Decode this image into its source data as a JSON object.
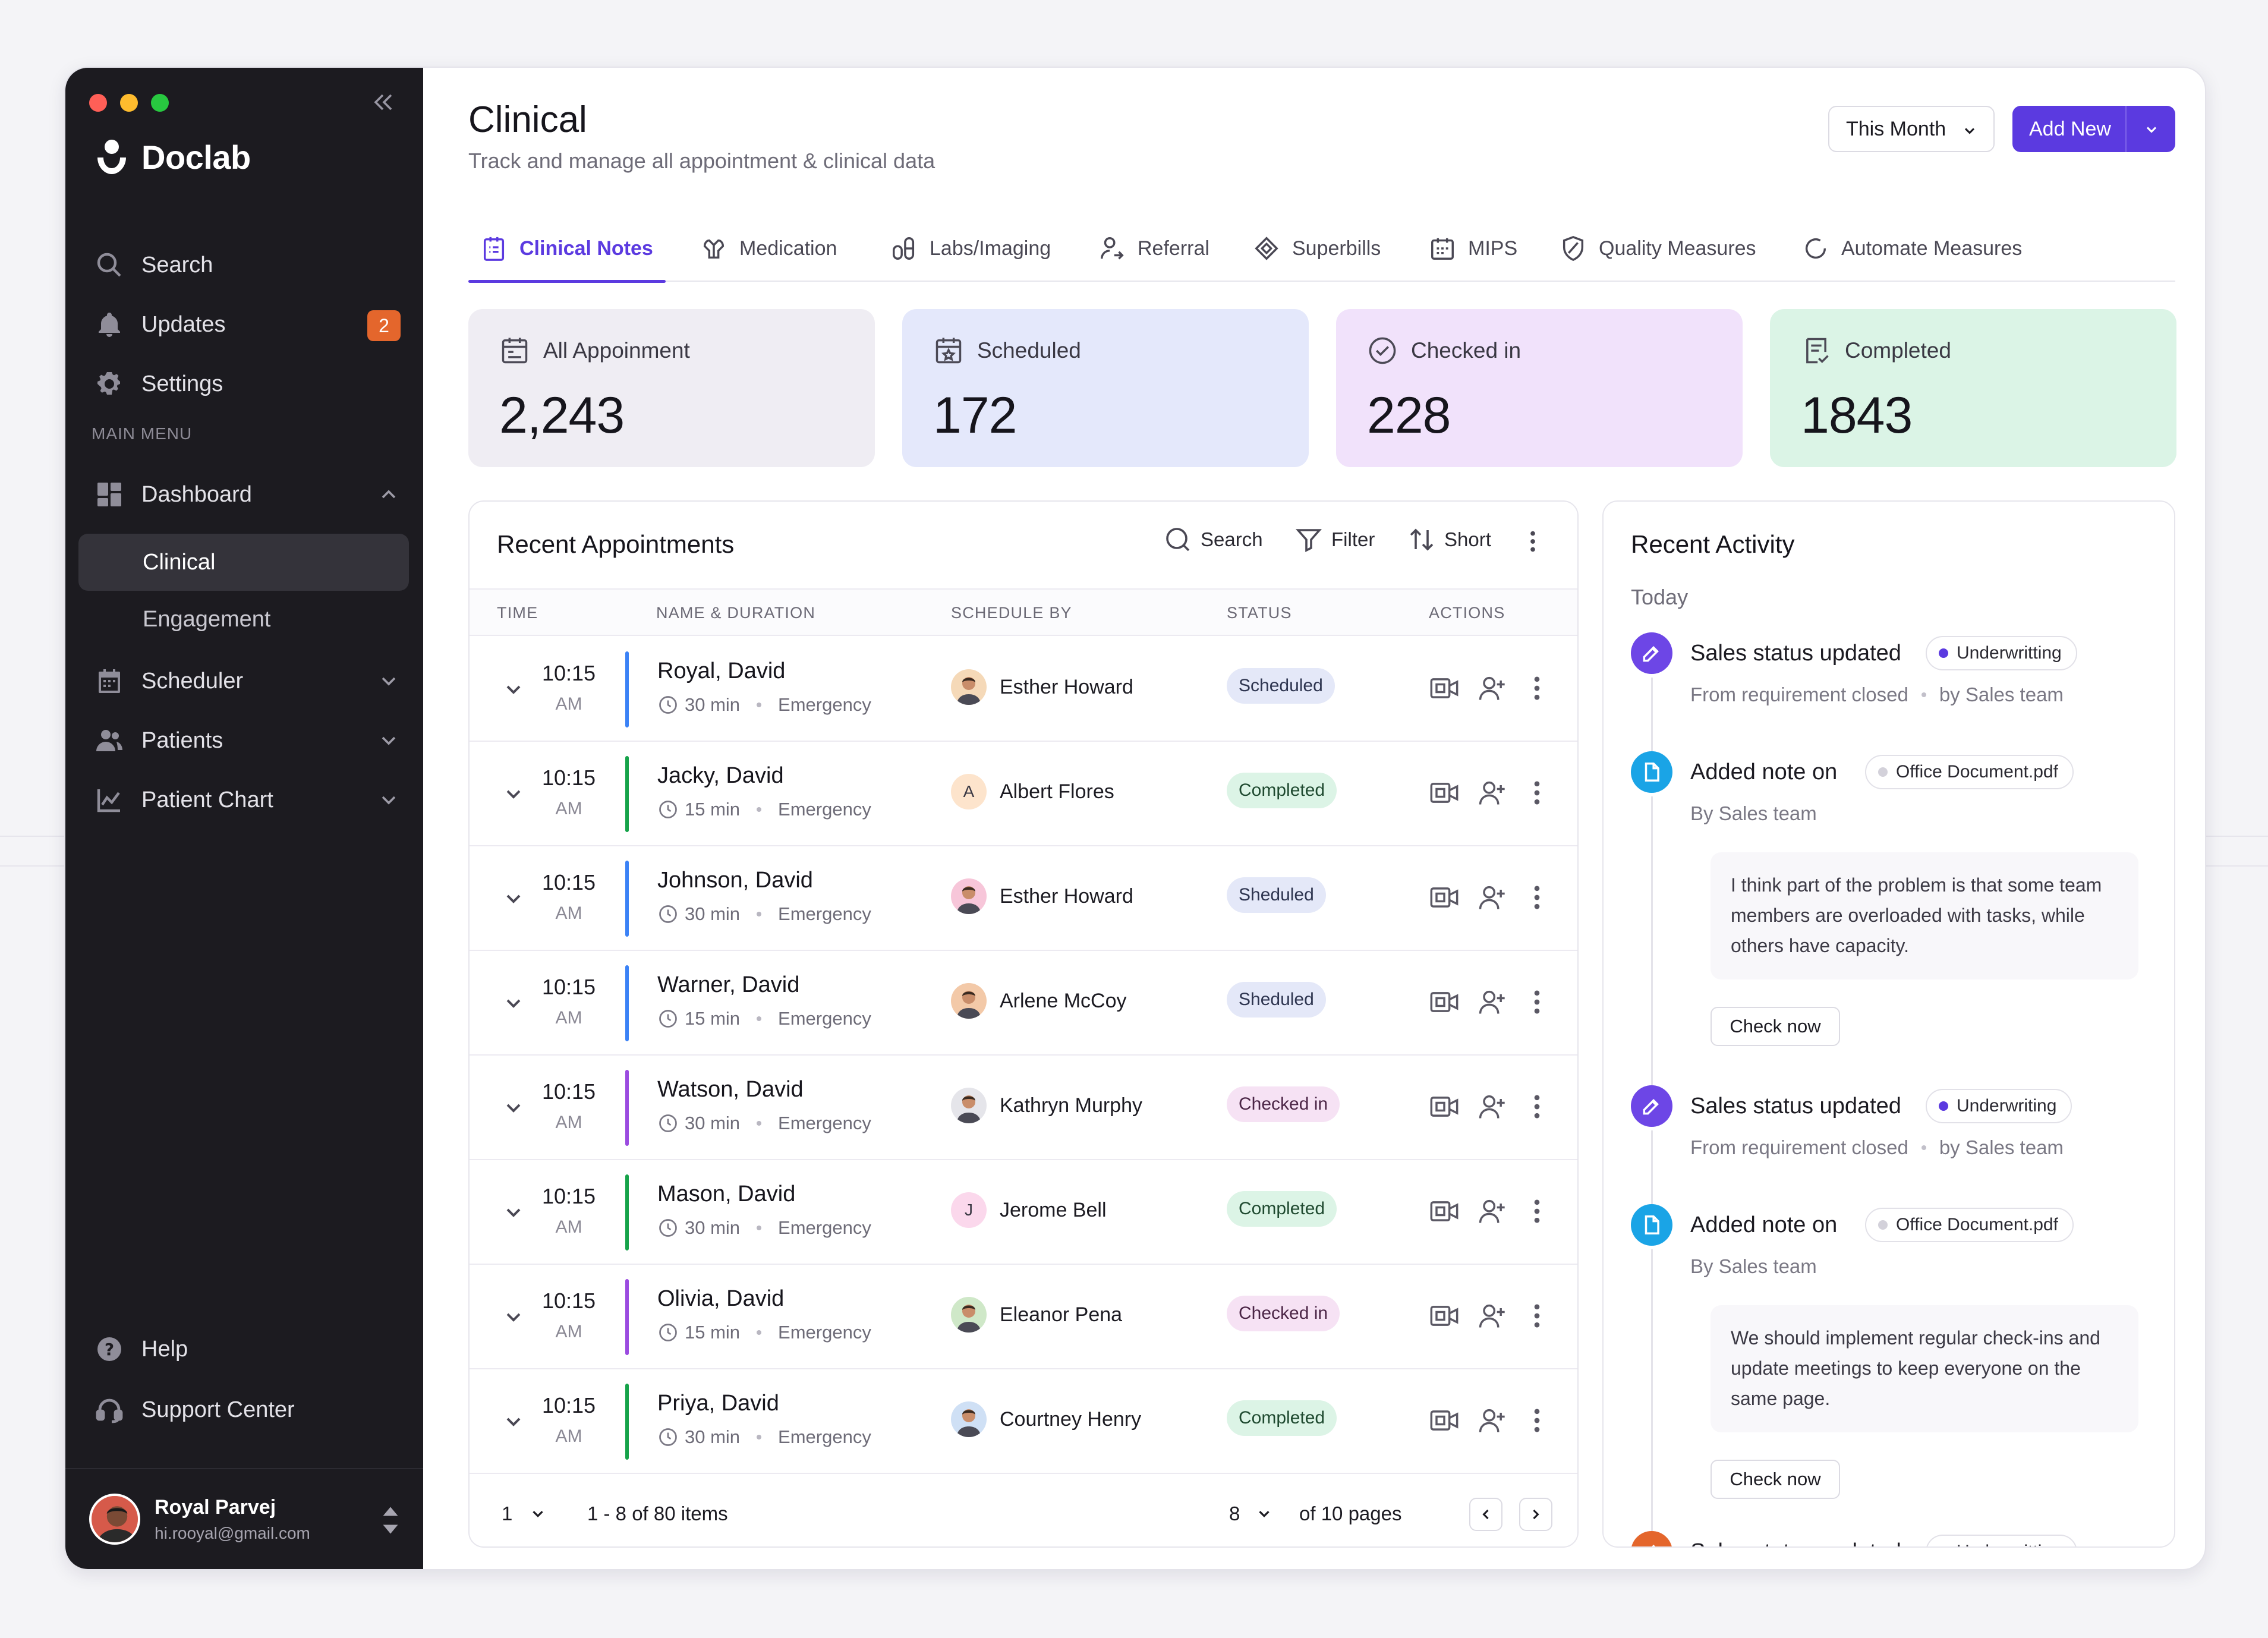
{
  "app": {
    "name": "Doclab"
  },
  "sidebar": {
    "top_items": [
      {
        "label": "Search",
        "icon": "search-icon"
      },
      {
        "label": "Updates",
        "icon": "bell-icon",
        "badge": "2"
      },
      {
        "label": "Settings",
        "icon": "gear-icon"
      }
    ],
    "section_label": "MAIN MENU",
    "menu": [
      {
        "label": "Dashboard",
        "icon": "dashboard-icon",
        "expanded": true
      },
      {
        "label": "Scheduler",
        "icon": "calendar-icon"
      },
      {
        "label": "Patients",
        "icon": "users-icon"
      },
      {
        "label": "Patient Chart",
        "icon": "chart-icon"
      }
    ],
    "sub_items": [
      {
        "label": "Clinical",
        "active": true
      },
      {
        "label": "Engagement"
      }
    ],
    "bottom_items": [
      {
        "label": "Help",
        "icon": "help-icon"
      },
      {
        "label": "Support Center",
        "icon": "headset-icon"
      }
    ],
    "user": {
      "name": "Royal Parvej",
      "email": "hi.rooyal@gmail.com"
    }
  },
  "header": {
    "title": "Clinical",
    "subtitle": "Track and manage all appointment & clinical data",
    "period": "This Month",
    "add_label": "Add New"
  },
  "tabs": [
    {
      "label": "Clinical Notes",
      "icon": "clipboard-icon",
      "active": true
    },
    {
      "label": "Medication",
      "icon": "pill-icon"
    },
    {
      "label": "Labs/Imaging",
      "icon": "flask-icon"
    },
    {
      "label": "Referral",
      "icon": "referral-icon"
    },
    {
      "label": "Superbills",
      "icon": "tag-icon"
    },
    {
      "label": "MIPS",
      "icon": "calendar-grid-icon"
    },
    {
      "label": "Quality Measures",
      "icon": "shield-icon"
    },
    {
      "label": "Automate Measures",
      "icon": "refresh-icon"
    }
  ],
  "stats": [
    {
      "label": "All Appoinment",
      "value": "2,243",
      "color": "#efedf3",
      "icon": "calendar-icon"
    },
    {
      "label": "Scheduled",
      "value": "172",
      "color": "#e4e8fb",
      "icon": "calendar-star-icon"
    },
    {
      "label": "Checked in",
      "value": "228",
      "color": "#f1e2fb",
      "icon": "check-circle-icon"
    },
    {
      "label": "Completed",
      "value": "1843",
      "color": "#dbf4e6",
      "icon": "checklist-icon"
    }
  ],
  "appointments": {
    "title": "Recent Appointments",
    "toolbar": {
      "search": "Search",
      "filter": "Filter",
      "sort": "Short"
    },
    "columns": [
      "TIME",
      "NAME & DURATION",
      "SCHEDULE BY",
      "STATUS",
      "ACTIONS"
    ],
    "rows": [
      {
        "time": "10:15",
        "ampm": "AM",
        "name": "Royal, David",
        "duration": "30 min",
        "type": "Emergency",
        "by": "Esther Howard",
        "status": "Scheduled",
        "kind": "scheduled",
        "bar": "#3b82f6",
        "avatar": "photo",
        "avatar_bg": "#f5d9b8"
      },
      {
        "time": "10:15",
        "ampm": "AM",
        "name": "Jacky, David",
        "duration": "15 min",
        "type": "Emergency",
        "by": "Albert Flores",
        "status": "Completed",
        "kind": "completed",
        "bar": "#16a34a",
        "avatar": "A",
        "avatar_bg": "#fde4cc"
      },
      {
        "time": "10:15",
        "ampm": "AM",
        "name": "Johnson, David",
        "duration": "30 min",
        "type": "Emergency",
        "by": "Esther Howard",
        "status": "Sheduled",
        "kind": "scheduled",
        "bar": "#3b82f6",
        "avatar": "photo",
        "avatar_bg": "#f7c6d9"
      },
      {
        "time": "10:15",
        "ampm": "AM",
        "name": "Warner, David",
        "duration": "15 min",
        "type": "Emergency",
        "by": "Arlene McCoy",
        "status": "Sheduled",
        "kind": "scheduled",
        "bar": "#3b82f6",
        "avatar": "photo",
        "avatar_bg": "#f3c9a8"
      },
      {
        "time": "10:15",
        "ampm": "AM",
        "name": "Watson, David",
        "duration": "30 min",
        "type": "Emergency",
        "by": "Kathryn Murphy",
        "status": "Checked in",
        "kind": "checked",
        "bar": "#9b4be0",
        "avatar": "photo",
        "avatar_bg": "#e5e5ea"
      },
      {
        "time": "10:15",
        "ampm": "AM",
        "name": "Mason, David",
        "duration": "30 min",
        "type": "Emergency",
        "by": "Jerome Bell",
        "status": "Completed",
        "kind": "completed",
        "bar": "#16a34a",
        "avatar": "J",
        "avatar_bg": "#fbd8ec"
      },
      {
        "time": "10:15",
        "ampm": "AM",
        "name": "Olivia, David",
        "duration": "15 min",
        "type": "Emergency",
        "by": "Eleanor Pena",
        "status": "Checked in",
        "kind": "checked",
        "bar": "#9b4be0",
        "avatar": "photo",
        "avatar_bg": "#cfe8c8"
      },
      {
        "time": "10:15",
        "ampm": "AM",
        "name": "Priya, David",
        "duration": "30 min",
        "type": "Emergency",
        "by": "Courtney Henry",
        "status": "Completed",
        "kind": "completed",
        "bar": "#16a34a",
        "avatar": "photo",
        "avatar_bg": "#cfe0f5"
      }
    ],
    "pager": {
      "page": "1",
      "range": "1 - 8 of 80 items",
      "per_page": "8",
      "pages": "of 10 pages"
    }
  },
  "activity": {
    "title": "Recent Activity",
    "group": "Today",
    "items": [
      {
        "title": "Sales status updated",
        "pill": "Underwritting",
        "pill_dot": "#5b3ae0",
        "sub_a": "From requirement closed",
        "sub_b": "by Sales team",
        "color": "#6d46e6",
        "icon": "edit-icon"
      },
      {
        "title": "Added note on",
        "pill": "Office Document.pdf",
        "pill_dot": "#d3d1da",
        "sub_a": "By Sales team",
        "note": "I think part of the problem is that some team members are overloaded with tasks, while others have capacity.",
        "action": "Check now",
        "color": "#1aa4e6",
        "icon": "document-icon"
      },
      {
        "title": "Sales status updated",
        "pill": "Underwriting",
        "pill_dot": "#5b3ae0",
        "sub_a": "From requirement closed",
        "sub_b": "by Sales team",
        "color": "#6d46e6",
        "icon": "edit-icon"
      },
      {
        "title": "Added note on",
        "pill": "Office Document.pdf",
        "pill_dot": "#d3d1da",
        "sub_a": "By Sales team",
        "note": "We should implement regular check-ins and update meetings to keep everyone on the same page.",
        "action": "Check now",
        "color": "#1aa4e6",
        "icon": "document-icon"
      },
      {
        "title": "Sales status updated",
        "pill": "Underwritting",
        "pill_dot": "#e4662c",
        "color": "#e4662c",
        "icon": "edit-icon"
      }
    ]
  }
}
